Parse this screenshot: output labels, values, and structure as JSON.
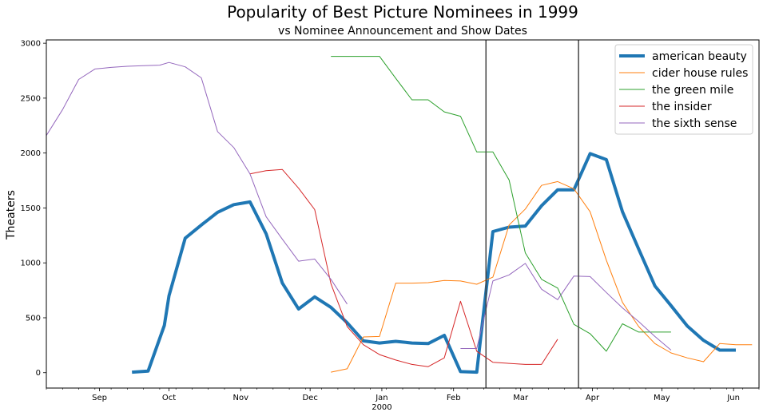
{
  "chart_data": {
    "type": "line",
    "title": "Popularity of Best Picture Nominees in 1999",
    "subtitle": "vs Nominee Announcement and Show Dates",
    "xlabel": "",
    "ylabel": "Theaters",
    "x_range": [
      "1999-08-09",
      "2000-06-12"
    ],
    "ylim": [
      -140,
      3030
    ],
    "y_ticks": [
      0,
      500,
      1000,
      1500,
      2000,
      2500,
      3000
    ],
    "x_ticks": [
      {
        "date": "1999-09-01",
        "label": "Sep"
      },
      {
        "date": "1999-10-01",
        "label": "Oct"
      },
      {
        "date": "1999-11-01",
        "label": "Nov"
      },
      {
        "date": "1999-12-01",
        "label": "Dec"
      },
      {
        "date": "2000-01-01",
        "label": "Jan"
      },
      {
        "date": "2000-02-01",
        "label": "Feb"
      },
      {
        "date": "2000-03-01",
        "label": "Mar"
      },
      {
        "date": "2000-04-01",
        "label": "Apr"
      },
      {
        "date": "2000-05-01",
        "label": "May"
      },
      {
        "date": "2000-06-01",
        "label": "Jun"
      }
    ],
    "x_year_label": {
      "date": "2000-01-01",
      "label": "2000"
    },
    "vlines": [
      "2000-02-15",
      "2000-03-26"
    ],
    "grid": false,
    "legend_position": "top-right",
    "colors": {
      "american_beauty": "#1f77b4",
      "cider_house_rules": "#ff7f0e",
      "the_green_mile": "#2ca02c",
      "the_insider": "#d62728",
      "the_sixth_sense": "#9467bd",
      "vline": "#444444"
    },
    "series": [
      {
        "name": "american beauty",
        "color": "#1f77b4",
        "width": 4,
        "x": [
          "1999-09-15",
          "1999-09-22",
          "1999-09-29",
          "1999-10-01",
          "1999-10-08",
          "1999-10-15",
          "1999-10-22",
          "1999-10-29",
          "1999-11-05",
          "1999-11-12",
          "1999-11-19",
          "1999-11-26",
          "1999-12-03",
          "1999-12-10",
          "1999-12-17",
          "1999-12-24",
          "1999-12-31",
          "2000-01-07",
          "2000-01-14",
          "2000-01-21",
          "2000-01-28",
          "2000-02-04",
          "2000-02-11",
          "2000-02-18",
          "2000-02-25",
          "2000-03-03",
          "2000-03-10",
          "2000-03-17",
          "2000-03-24",
          "2000-03-31",
          "2000-04-07",
          "2000-04-14",
          "2000-04-21",
          "2000-04-28",
          "2000-05-05",
          "2000-05-12",
          "2000-05-19",
          "2000-05-26",
          "2000-06-02"
        ],
        "y": [
          5,
          15,
          430,
          700,
          1225,
          1345,
          1460,
          1530,
          1555,
          1265,
          815,
          580,
          690,
          595,
          455,
          290,
          270,
          285,
          270,
          265,
          340,
          10,
          5,
          1285,
          1325,
          1335,
          1520,
          1665,
          1665,
          1995,
          1940,
          1465,
          1125,
          790,
          610,
          425,
          295,
          205,
          205
        ]
      },
      {
        "name": "cider house rules",
        "color": "#ff7f0e",
        "width": 1,
        "x": [
          "1999-12-10",
          "1999-12-17",
          "1999-12-24",
          "1999-12-31",
          "2000-01-07",
          "2000-01-14",
          "2000-01-21",
          "2000-01-28",
          "2000-02-04",
          "2000-02-11",
          "2000-02-18",
          "2000-02-25",
          "2000-03-03",
          "2000-03-10",
          "2000-03-17",
          "2000-03-24",
          "2000-03-31",
          "2000-04-07",
          "2000-04-14",
          "2000-04-21",
          "2000-04-28",
          "2000-05-05",
          "2000-05-12",
          "2000-05-19",
          "2000-05-26",
          "2000-06-02",
          "2000-06-09"
        ],
        "y": [
          5,
          35,
          325,
          330,
          815,
          815,
          820,
          840,
          835,
          805,
          870,
          1345,
          1490,
          1705,
          1740,
          1675,
          1465,
          1025,
          640,
          420,
          265,
          180,
          135,
          100,
          265,
          255,
          255
        ]
      },
      {
        "name": "the green mile",
        "color": "#2ca02c",
        "width": 1,
        "x": [
          "1999-12-10",
          "1999-12-17",
          "1999-12-24",
          "1999-12-31",
          "2000-01-07",
          "2000-01-14",
          "2000-01-21",
          "2000-01-28",
          "2000-02-04",
          "2000-02-11",
          "2000-02-18",
          "2000-02-25",
          "2000-03-03",
          "2000-03-10",
          "2000-03-17",
          "2000-03-24",
          "2000-03-31",
          "2000-04-07",
          "2000-04-14",
          "2000-04-21",
          "2000-04-28",
          "2000-05-05"
        ],
        "y": [
          2880,
          2880,
          2880,
          2880,
          2680,
          2485,
          2485,
          2375,
          2335,
          2010,
          2010,
          1755,
          1090,
          850,
          770,
          440,
          355,
          195,
          445,
          370,
          370,
          370
        ]
      },
      {
        "name": "the insider",
        "color": "#d62728",
        "width": 1,
        "x": [
          "1999-11-05",
          "1999-11-12",
          "1999-11-19",
          "1999-11-26",
          "1999-12-03",
          "1999-12-10",
          "1999-12-17",
          "1999-12-24",
          "1999-12-31",
          "2000-01-07",
          "2000-01-14",
          "2000-01-21",
          "2000-01-28",
          "2000-02-04",
          "2000-02-11",
          "2000-02-18",
          "2000-02-25",
          "2000-03-03",
          "2000-03-10",
          "2000-03-17"
        ],
        "y": [
          1810,
          1840,
          1850,
          1680,
          1485,
          810,
          420,
          255,
          165,
          115,
          75,
          55,
          135,
          650,
          195,
          95,
          85,
          75,
          75,
          305
        ]
      },
      {
        "name": "the sixth sense",
        "color": "#9467bd",
        "width": 1,
        "x": [
          "1999-08-09",
          "1999-08-16",
          "1999-08-23",
          "1999-08-30",
          "1999-09-06",
          "1999-09-13",
          "1999-09-20",
          "1999-09-27",
          "1999-10-01",
          "1999-10-08",
          "1999-10-15",
          "1999-10-22",
          "1999-10-29",
          "1999-11-05",
          "1999-11-12",
          "1999-11-19",
          "1999-11-26",
          "1999-12-03",
          "1999-12-10",
          "1999-12-17",
          "1999-12-24",
          "1999-12-31",
          "2000-01-07",
          "2000-01-14",
          "2000-01-21",
          "2000-01-28",
          "2000-02-04",
          "2000-02-11",
          "2000-02-18",
          "2000-02-25",
          "2000-03-03",
          "2000-03-10",
          "2000-03-17",
          "2000-03-24",
          "2000-03-31",
          "2000-04-07",
          "2000-04-14",
          "2000-04-21",
          "2000-04-28",
          "2000-05-05"
        ],
        "y": [
          2160,
          2395,
          2670,
          2765,
          2780,
          2790,
          2795,
          2800,
          2825,
          2785,
          2685,
          2195,
          2050,
          1810,
          1420,
          1215,
          1015,
          1035,
          850,
          625,
          null,
          null,
          null,
          null,
          null,
          null,
          220,
          220,
          835,
          890,
          995,
          760,
          665,
          880,
          875,
          730,
          590,
          465,
          330,
          205
        ]
      }
    ]
  }
}
